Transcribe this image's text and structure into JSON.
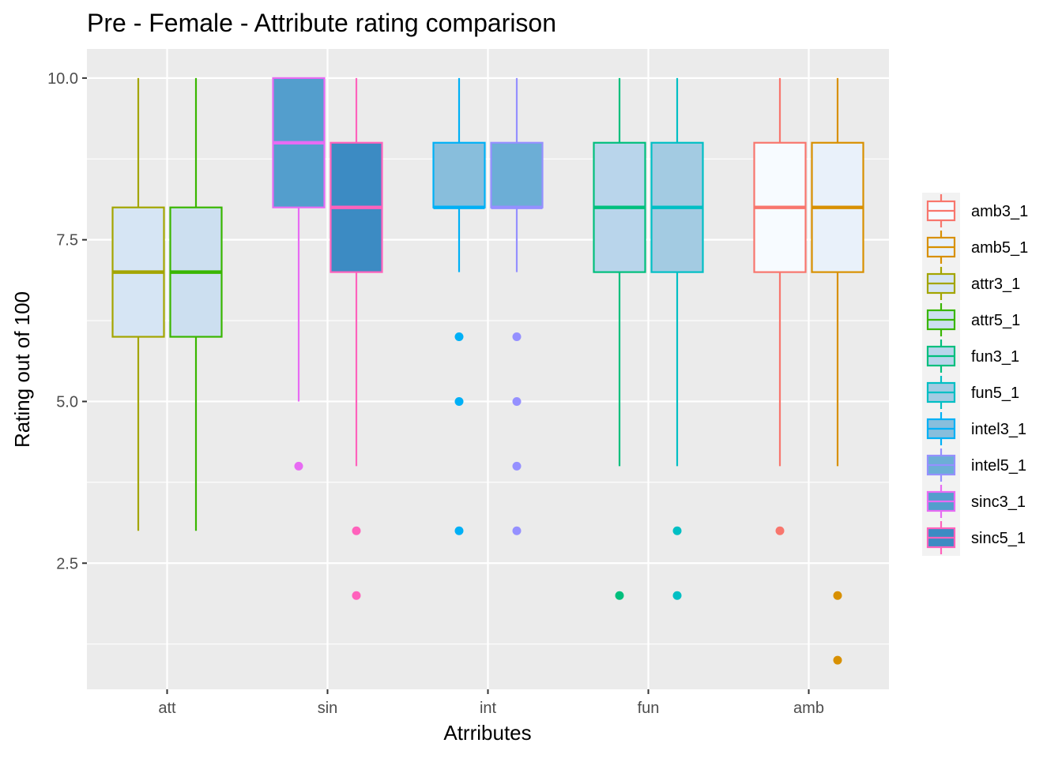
{
  "chart_data": {
    "type": "boxplot",
    "title": "Pre - Female - Attribute rating comparison",
    "xlabel": "Atrributes",
    "ylabel": "Rating out of 100",
    "categories": [
      "att",
      "sin",
      "int",
      "fun",
      "amb"
    ],
    "ylim": [
      0.55,
      10.45
    ],
    "yticks": [
      {
        "value": 2.5,
        "label": "2.5"
      },
      {
        "value": 5.0,
        "label": "5.0"
      },
      {
        "value": 7.5,
        "label": "7.5"
      },
      {
        "value": 10.0,
        "label": "10.0"
      }
    ],
    "grid": true,
    "legend_position": "right",
    "series": [
      {
        "name": "attr3_1",
        "category": "att",
        "slot": 0,
        "color": "#A3A500",
        "fill": "#D6E5F4",
        "whisker_low": 3,
        "q1": 6,
        "median": 7,
        "q3": 8,
        "whisker_high": 10,
        "outliers": []
      },
      {
        "name": "attr5_1",
        "category": "att",
        "slot": 1,
        "color": "#39B600",
        "fill": "#CCDFF0",
        "whisker_low": 3,
        "q1": 6,
        "median": 7,
        "q3": 8,
        "whisker_high": 10,
        "outliers": []
      },
      {
        "name": "sinc3_1",
        "category": "sin",
        "slot": 0,
        "color": "#E76BF3",
        "fill": "#539ECD",
        "whisker_low": 5,
        "q1": 8,
        "median": 9,
        "q3": 10,
        "whisker_high": 10,
        "outliers": [
          4
        ]
      },
      {
        "name": "sinc5_1",
        "category": "sin",
        "slot": 1,
        "color": "#FF62BC",
        "fill": "#3C8BC3",
        "whisker_low": 4,
        "q1": 7,
        "median": 8,
        "q3": 9,
        "whisker_high": 10,
        "outliers": [
          3,
          2
        ]
      },
      {
        "name": "intel3_1",
        "category": "int",
        "slot": 0,
        "color": "#00B0F6",
        "fill": "#88BEDC",
        "whisker_low": 7,
        "q1": 8,
        "median": 8,
        "q3": 9,
        "whisker_high": 10,
        "outliers": [
          6,
          5,
          3
        ]
      },
      {
        "name": "intel5_1",
        "category": "int",
        "slot": 1,
        "color": "#9590FF",
        "fill": "#6CAED6",
        "whisker_low": 7,
        "q1": 8,
        "median": 8,
        "q3": 9,
        "whisker_high": 10,
        "outliers": [
          6,
          5,
          4,
          3
        ]
      },
      {
        "name": "fun3_1",
        "category": "fun",
        "slot": 0,
        "color": "#00BF7D",
        "fill": "#B9D5EB",
        "whisker_low": 4,
        "q1": 7,
        "median": 8,
        "q3": 9,
        "whisker_high": 10,
        "outliers": [
          2
        ]
      },
      {
        "name": "fun5_1",
        "category": "fun",
        "slot": 1,
        "color": "#00BFC4",
        "fill": "#A3CBE2",
        "whisker_low": 4,
        "q1": 7,
        "median": 8,
        "q3": 9,
        "whisker_high": 10,
        "outliers": [
          3,
          2
        ]
      },
      {
        "name": "amb3_1",
        "category": "amb",
        "slot": 0,
        "color": "#F8766D",
        "fill": "#F7FBFF",
        "whisker_low": 4,
        "q1": 7,
        "median": 8,
        "q3": 9,
        "whisker_high": 10,
        "outliers": [
          3
        ]
      },
      {
        "name": "amb5_1",
        "category": "amb",
        "slot": 1,
        "color": "#D89000",
        "fill": "#E9F1FA",
        "whisker_low": 4,
        "q1": 7,
        "median": 8,
        "q3": 9,
        "whisker_high": 10,
        "outliers": [
          2,
          1
        ]
      }
    ],
    "legend_order": [
      "amb3_1",
      "amb5_1",
      "attr3_1",
      "attr5_1",
      "fun3_1",
      "fun5_1",
      "intel3_1",
      "intel5_1",
      "sinc3_1",
      "sinc5_1"
    ]
  }
}
